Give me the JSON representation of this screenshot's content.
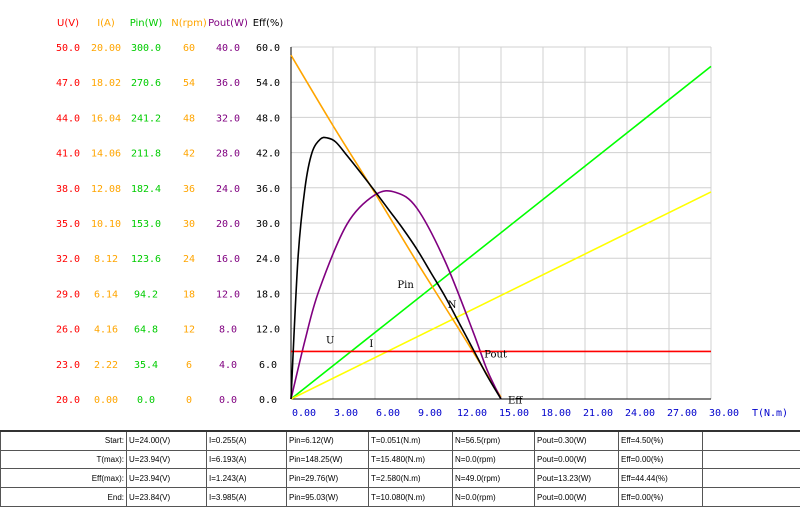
{
  "chart_data": {
    "type": "line",
    "x_axis": {
      "label": "T(N.m)",
      "ticks": [
        "0.00",
        "3.00",
        "6.00",
        "9.00",
        "12.00",
        "15.00",
        "18.00",
        "21.00",
        "24.00",
        "27.00",
        "30.00"
      ],
      "range": [
        0,
        30
      ]
    },
    "y_axes": [
      {
        "name": "U(V)",
        "color": "#ff0000",
        "ticks": [
          "20.0",
          "23.0",
          "26.0",
          "29.0",
          "32.0",
          "35.0",
          "38.0",
          "41.0",
          "44.0",
          "47.0",
          "50.0"
        ]
      },
      {
        "name": "I(A)",
        "color": "#ffa500",
        "ticks": [
          "0.00",
          "2.22",
          "4.16",
          "6.14",
          "8.12",
          "10.10",
          "12.08",
          "14.06",
          "16.04",
          "18.02",
          "20.00"
        ]
      },
      {
        "name": "Pin(W)",
        "color": "#00cc00",
        "ticks": [
          "0.0",
          "35.4",
          "64.8",
          "94.2",
          "123.6",
          "153.0",
          "182.4",
          "211.8",
          "241.2",
          "270.6",
          "300.0"
        ]
      },
      {
        "name": "N(rpm)",
        "color": "#ffa500",
        "ticks": [
          "0",
          "6",
          "12",
          "18",
          "24",
          "30",
          "36",
          "42",
          "48",
          "54",
          "60"
        ]
      },
      {
        "name": "Pout(W)",
        "color": "#800080",
        "ticks": [
          "0.0",
          "4.0",
          "8.0",
          "12.0",
          "16.0",
          "20.0",
          "24.0",
          "28.0",
          "32.0",
          "36.0",
          "40.0"
        ]
      },
      {
        "name": "Eff(%)",
        "color": "#000000",
        "ticks": [
          "0.0",
          "6.0",
          "12.0",
          "18.0",
          "24.0",
          "30.0",
          "36.0",
          "42.0",
          "48.0",
          "54.0",
          "60.0"
        ]
      }
    ],
    "grid": true,
    "series": [
      {
        "name": "Pin",
        "color": "#00ff00",
        "x": [
          0,
          30
        ],
        "y": [
          0,
          56.7
        ]
      },
      {
        "name": "I",
        "color": "#ffff00",
        "x": [
          0,
          30
        ],
        "y": [
          0,
          35.3
        ]
      },
      {
        "name": "N",
        "color": "#ffa500",
        "x": [
          0,
          3,
          6,
          9,
          12,
          15
        ],
        "y": [
          58.6,
          46.6,
          35.1,
          23.3,
          11.9,
          0.3
        ]
      },
      {
        "name": "Pout",
        "color": "#800080",
        "x": [
          0,
          1,
          2,
          4,
          6,
          7.5,
          9,
          11,
          13,
          14,
          15
        ],
        "y": [
          0,
          10,
          18.5,
          29.8,
          34.8,
          35.2,
          32.5,
          23.5,
          11.5,
          5,
          0
        ]
      },
      {
        "name": "U",
        "color": "#ff0000",
        "x": [
          0,
          30
        ],
        "y": [
          8.1,
          8.1
        ]
      },
      {
        "name": "Eff",
        "color": "#000000",
        "x": [
          0,
          0.5,
          1,
          1.5,
          2.1,
          2.6,
          3.2,
          4,
          5,
          6,
          7,
          8,
          9,
          10,
          11,
          12,
          13,
          14,
          15
        ],
        "y": [
          0,
          24,
          36,
          42,
          44.3,
          44.5,
          43.8,
          41.5,
          38.5,
          35.4,
          32.2,
          29,
          25.5,
          21.5,
          17.5,
          13,
          8.5,
          4,
          0
        ]
      }
    ],
    "curve_labels": [
      {
        "text": "U",
        "x": 2.5,
        "y": 9.5
      },
      {
        "text": "I",
        "x": 5.6,
        "y": 8.9
      },
      {
        "text": "Pin",
        "x": 7.6,
        "y": 18.9
      },
      {
        "text": "N",
        "x": 11.2,
        "y": 15.5
      },
      {
        "text": "Pout",
        "x": 13.8,
        "y": 7.1
      },
      {
        "text": "Eff",
        "x": 15.5,
        "y": -0.8
      }
    ]
  },
  "table": {
    "rows": [
      {
        "label": "Start:",
        "cells": [
          "U=24.00(V)",
          "I=0.255(A)",
          "Pin=6.12(W)",
          "T=0.051(N.m)",
          "N=56.5(rpm)",
          "Pout=0.30(W)",
          "Eff=4.50(%)"
        ]
      },
      {
        "label": "T(max):",
        "cells": [
          "U=23.94(V)",
          "I=6.193(A)",
          "Pin=148.25(W)",
          "T=15.480(N.m)",
          "N=0.0(rpm)",
          "Pout=0.00(W)",
          "Eff=0.00(%)"
        ]
      },
      {
        "label": "Eff(max):",
        "cells": [
          "U=23.94(V)",
          "I=1.243(A)",
          "Pin=29.76(W)",
          "T=2.580(N.m)",
          "N=49.0(rpm)",
          "Pout=13.23(W)",
          "Eff=44.44(%)"
        ]
      },
      {
        "label": "End:",
        "cells": [
          "U=23.84(V)",
          "I=3.985(A)",
          "Pin=95.03(W)",
          "T=10.080(N.m)",
          "N=0.0(rpm)",
          "Pout=0.00(W)",
          "Eff=0.00(%)"
        ]
      }
    ]
  }
}
